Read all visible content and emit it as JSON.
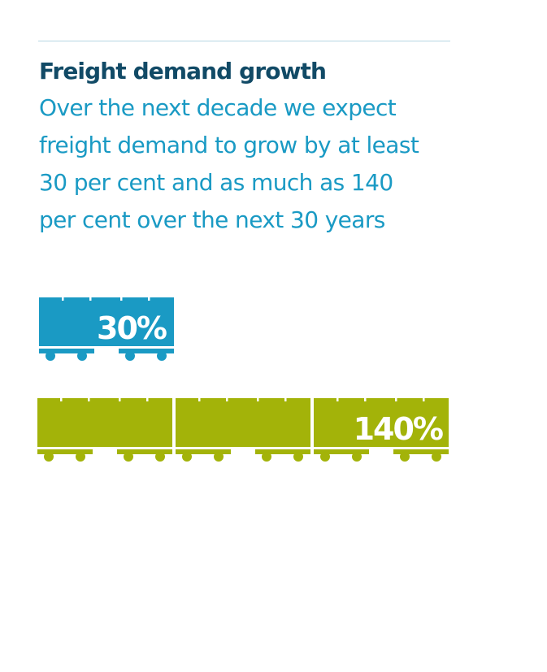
{
  "colors": {
    "title": "#114a66",
    "subtitle": "#1a9ac4",
    "rule": "#b6d6e2",
    "wagon_30": "#1a9ac4",
    "wagon_140": "#a3b309",
    "label": "#ffffff"
  },
  "header": {
    "title": "Freight demand growth",
    "subtitle": "Over the next decade we expect freight demand to grow by at least 30 per cent and as much as 140 per cent over the next 30 years"
  },
  "trains": [
    {
      "label": "30%",
      "wagons": 1,
      "color": "#1a9ac4"
    },
    {
      "label": "140%",
      "wagons": 3,
      "color": "#a3b309"
    }
  ]
}
